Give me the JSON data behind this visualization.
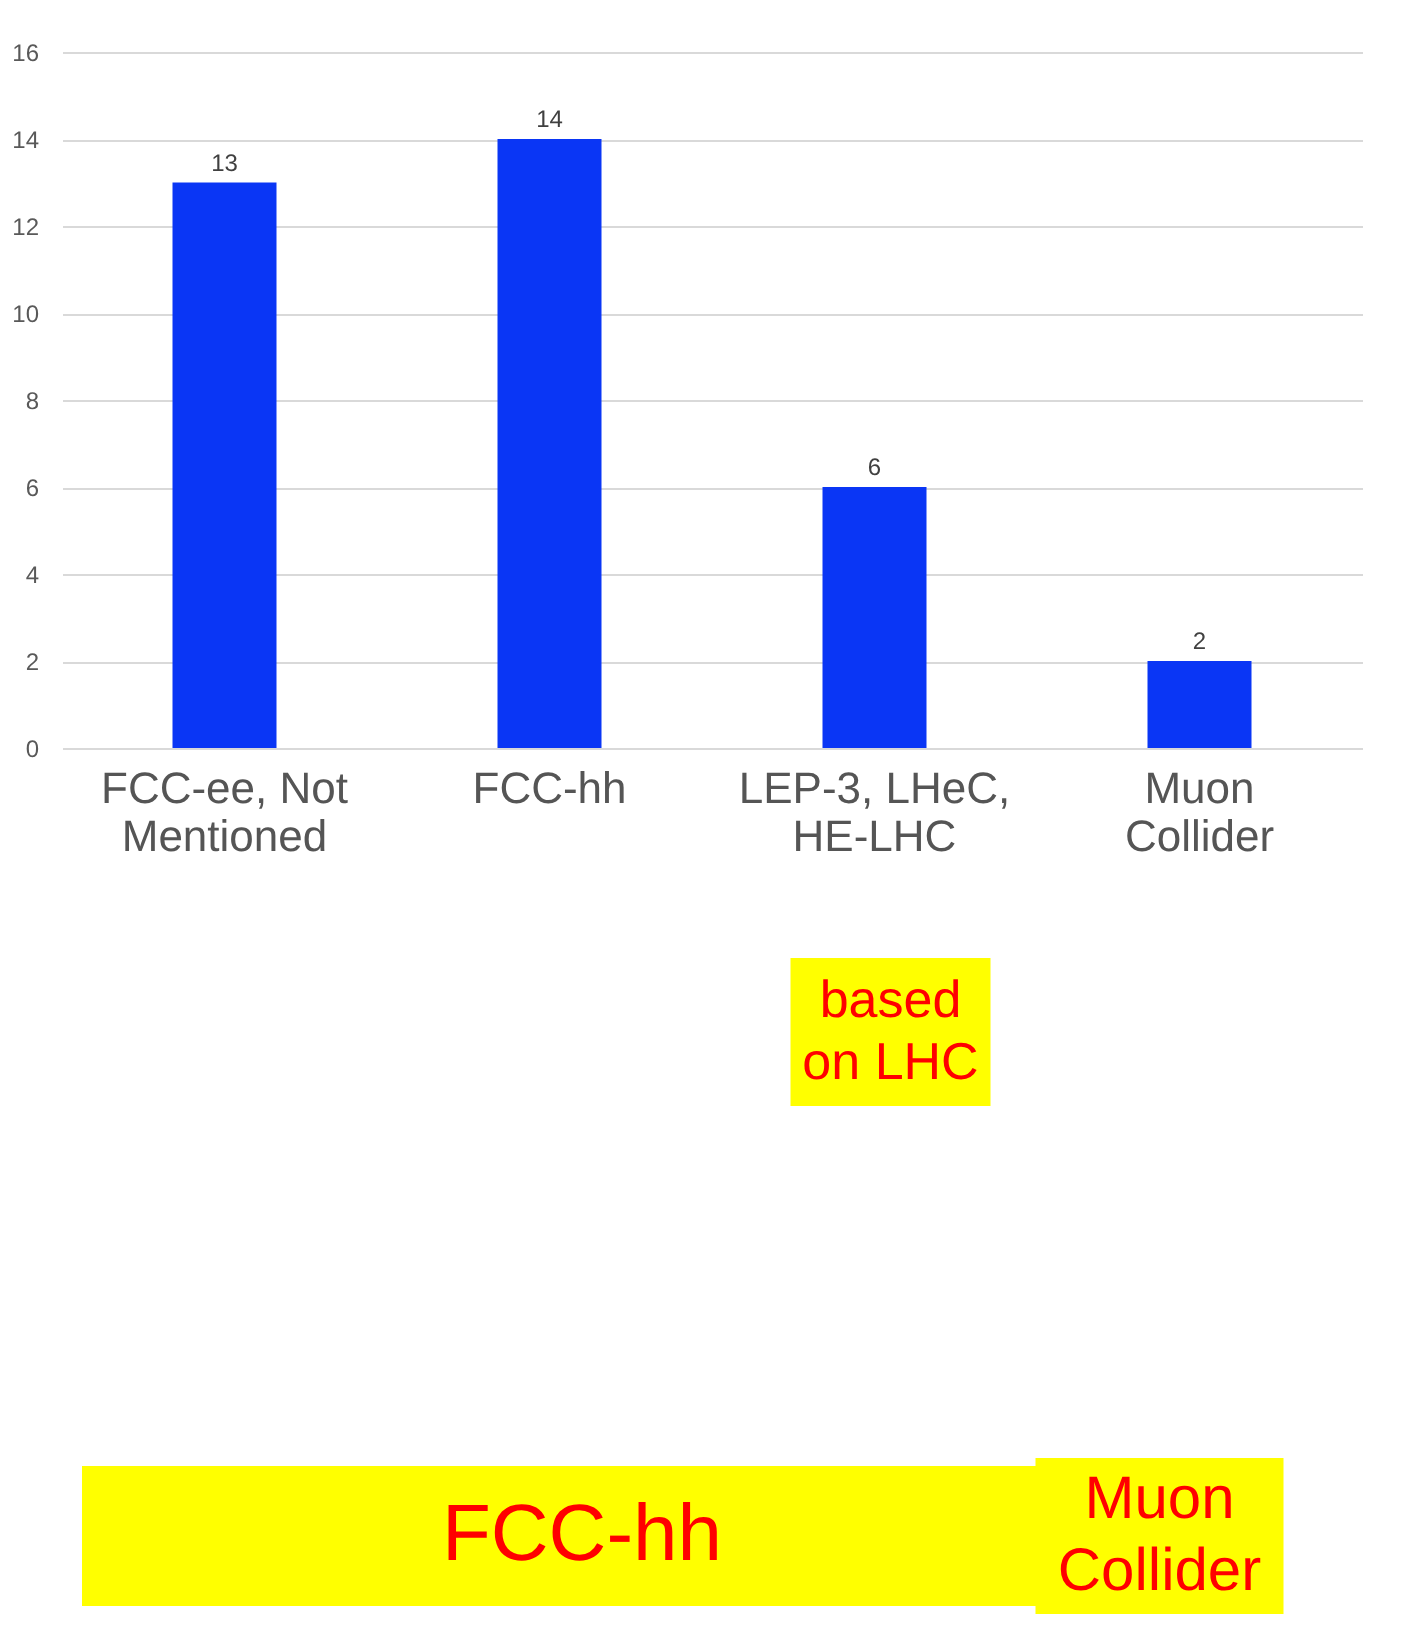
{
  "chart_data": {
    "type": "bar",
    "categories": [
      "FCC-ee, Not Mentioned",
      "FCC-hh",
      "LEP-3, LHeC, HE-LHC",
      "Muon Collider"
    ],
    "values": [
      13,
      14,
      6,
      2
    ],
    "color": "#0a36f5",
    "ylim": [
      0,
      16
    ],
    "yticks": [
      0,
      2,
      4,
      6,
      8,
      10,
      12,
      14,
      16
    ],
    "grid": "y",
    "data_labels": true,
    "annotations": [
      "based on LHC",
      "FCC-hh",
      "Muon Collider"
    ]
  }
}
